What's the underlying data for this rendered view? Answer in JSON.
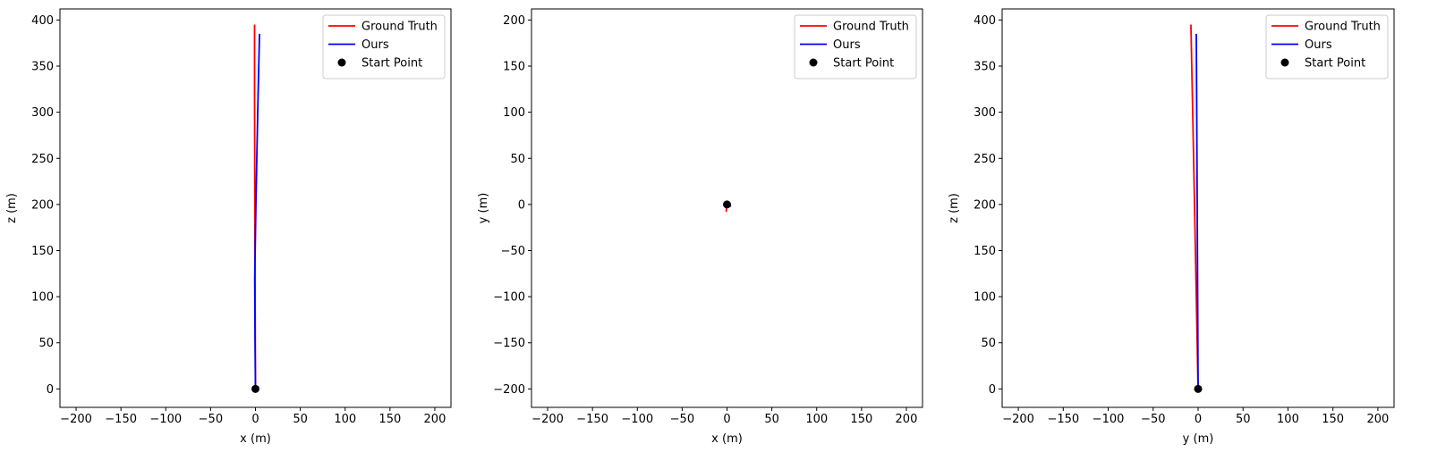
{
  "chart_data": [
    {
      "type": "line",
      "xlabel": "x (m)",
      "ylabel": "z (m)",
      "xlim": [
        -218,
        218
      ],
      "ylim": [
        -20,
        412
      ],
      "xticks": [
        -200,
        -150,
        -100,
        -50,
        0,
        50,
        100,
        150,
        200
      ],
      "yticks": [
        0,
        50,
        100,
        150,
        200,
        250,
        300,
        350,
        400
      ],
      "legend_position": "top-right",
      "grid": false,
      "series": [
        {
          "name": "Ground Truth",
          "color": "#ff0000",
          "x": [
            0,
            -0.3,
            -0.6,
            -0.8,
            -1.0,
            -1.0
          ],
          "y": [
            0,
            80,
            160,
            240,
            320,
            395
          ]
        },
        {
          "name": "Ours",
          "color": "#0000ff",
          "x": [
            0,
            -0.5,
            -0.8,
            0.5,
            2.5,
            4.5
          ],
          "y": [
            0,
            60,
            120,
            200,
            300,
            385
          ]
        }
      ],
      "start_point": {
        "name": "Start Point",
        "x": 0,
        "y": 0,
        "color": "#000000"
      }
    },
    {
      "type": "line",
      "xlabel": "x (m)",
      "ylabel": "y (m)",
      "xlim": [
        -218,
        218
      ],
      "ylim": [
        -220,
        212
      ],
      "xticks": [
        -200,
        -150,
        -100,
        -50,
        0,
        50,
        100,
        150,
        200
      ],
      "yticks": [
        -200,
        -150,
        -100,
        -50,
        0,
        50,
        100,
        150,
        200
      ],
      "legend_position": "top-right",
      "grid": false,
      "series": [
        {
          "name": "Ground Truth",
          "color": "#ff0000",
          "x": [
            0,
            -0.5,
            -1.0
          ],
          "y": [
            0,
            -4,
            -8
          ]
        },
        {
          "name": "Ours",
          "color": "#0000ff",
          "x": [
            0,
            2.0,
            4.5
          ],
          "y": [
            0,
            -1,
            -2
          ]
        }
      ],
      "start_point": {
        "name": "Start Point",
        "x": 0,
        "y": 0,
        "color": "#000000"
      }
    },
    {
      "type": "line",
      "xlabel": "y (m)",
      "ylabel": "z (m)",
      "xlim": [
        -218,
        218
      ],
      "ylim": [
        -20,
        412
      ],
      "xticks": [
        -200,
        -150,
        -100,
        -50,
        0,
        50,
        100,
        150,
        200
      ],
      "yticks": [
        0,
        50,
        100,
        150,
        200,
        250,
        300,
        350,
        400
      ],
      "legend_position": "top-right",
      "grid": false,
      "series": [
        {
          "name": "Ground Truth",
          "color": "#ff0000",
          "x": [
            0,
            -2,
            -4,
            -6,
            -8
          ],
          "y": [
            0,
            100,
            200,
            300,
            395
          ]
        },
        {
          "name": "Ours",
          "color": "#0000ff",
          "x": [
            0,
            -0.5,
            -1.0,
            -1.5,
            -2.0
          ],
          "y": [
            0,
            100,
            200,
            300,
            385
          ]
        }
      ],
      "start_point": {
        "name": "Start Point",
        "x": 0,
        "y": 0,
        "color": "#000000"
      }
    }
  ]
}
